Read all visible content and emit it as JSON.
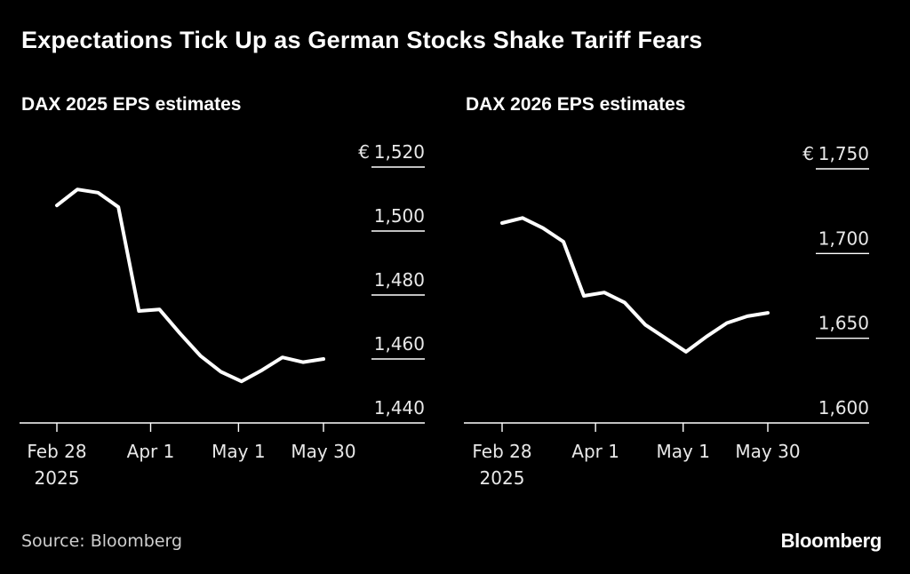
{
  "title": "Expectations Tick Up as German Stocks Shake Tariff Fears",
  "source": "Source: Bloomberg",
  "logo": "Bloomberg",
  "colors": {
    "background": "#000000",
    "line": "#ffffff",
    "text": "#ffffff"
  },
  "chart_data": [
    {
      "type": "line",
      "title": "DAX 2025 EPS estimates",
      "xlabel": "",
      "ylabel": "",
      "currency_label": "€",
      "ylim": [
        1440,
        1520
      ],
      "yticks": [
        {
          "value": 1520,
          "label": "1,520"
        },
        {
          "value": 1500,
          "label": "1,500"
        },
        {
          "value": 1480,
          "label": "1,480"
        },
        {
          "value": 1460,
          "label": "1,460"
        },
        {
          "value": 1440,
          "label": "1,440"
        }
      ],
      "xlim_days": [
        0,
        91
      ],
      "xticks": [
        {
          "day": 0,
          "label": "Feb 28",
          "sublabel": "2025"
        },
        {
          "day": 32,
          "label": "Apr 1",
          "sublabel": ""
        },
        {
          "day": 62,
          "label": "May 1",
          "sublabel": ""
        },
        {
          "day": 91,
          "label": "May 30",
          "sublabel": ""
        }
      ],
      "series": [
        {
          "name": "DAX 2025 EPS estimates",
          "x": [
            0,
            7,
            14,
            21,
            28,
            35,
            42,
            49,
            56,
            63,
            70,
            77,
            84,
            91
          ],
          "values": [
            1508,
            1513,
            1512,
            1507.5,
            1475,
            1475.5,
            1468,
            1461,
            1456,
            1453,
            1456.5,
            1460.5,
            1459,
            1460
          ]
        }
      ]
    },
    {
      "type": "line",
      "title": "DAX 2026 EPS estimates",
      "xlabel": "",
      "ylabel": "",
      "currency_label": "€",
      "ylim": [
        1600,
        1750
      ],
      "yticks": [
        {
          "value": 1750,
          "label": "1,750"
        },
        {
          "value": 1700,
          "label": "1,700"
        },
        {
          "value": 1650,
          "label": "1,650"
        },
        {
          "value": 1600,
          "label": "1,600"
        }
      ],
      "xlim_days": [
        0,
        91
      ],
      "xticks": [
        {
          "day": 0,
          "label": "Feb 28",
          "sublabel": "2025"
        },
        {
          "day": 32,
          "label": "Apr 1",
          "sublabel": ""
        },
        {
          "day": 62,
          "label": "May 1",
          "sublabel": ""
        },
        {
          "day": 91,
          "label": "May 30",
          "sublabel": ""
        }
      ],
      "series": [
        {
          "name": "DAX 2026 EPS estimates",
          "x": [
            0,
            7,
            14,
            21,
            28,
            35,
            42,
            49,
            56,
            63,
            70,
            77,
            84,
            91
          ],
          "values": [
            1718,
            1721,
            1715,
            1707,
            1675,
            1677,
            1671,
            1658,
            1650,
            1642,
            1651,
            1659,
            1663,
            1665
          ]
        }
      ]
    }
  ]
}
